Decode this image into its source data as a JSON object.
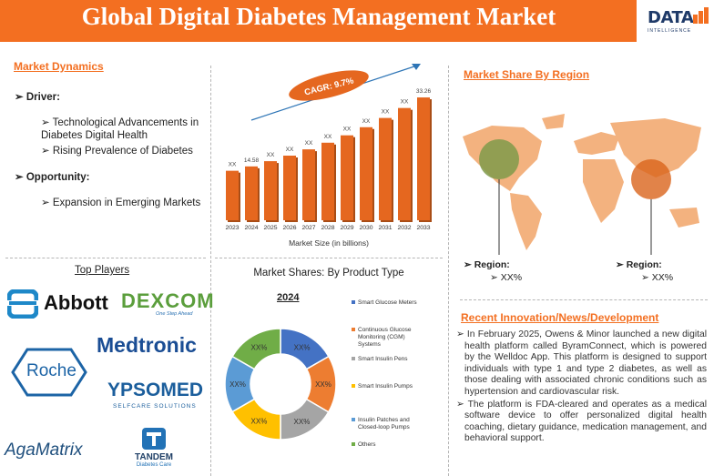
{
  "header": {
    "title": "Global Digital Diabetes Management Market",
    "logo_text": "DATA",
    "logo_sub": "INTELLIGENCE"
  },
  "dynamics": {
    "title": "Market Dynamics",
    "driver_label": "Driver:",
    "drivers": [
      "Technological Advancements in Diabetes Digital Health",
      "Rising Prevalence of Diabetes"
    ],
    "opportunity_label": "Opportunity:",
    "opportunities": [
      "Expansion in Emerging Markets"
    ]
  },
  "chart_data": [
    {
      "type": "bar",
      "categories": [
        "2023",
        "2024",
        "2025",
        "2026",
        "2027",
        "2028",
        "2029",
        "2030",
        "2031",
        "2032",
        "2033"
      ],
      "values": [
        13.4,
        14.58,
        16.0,
        17.5,
        19.2,
        21.0,
        23.0,
        25.2,
        27.7,
        30.4,
        33.26
      ],
      "data_labels": [
        "XX",
        "14.58",
        "XX",
        "XX",
        "XX",
        "XX",
        "XX",
        "XX",
        "XX",
        "XX",
        "33.26"
      ],
      "xlabel": "Market Size (in billions)",
      "annotation": "CAGR: 9.7%",
      "bar_color": "#e5671f"
    },
    {
      "type": "pie",
      "title": "Market Shares: By Product Type",
      "subtitle": "2024",
      "categories": [
        "Smart Glucose Meters",
        "Continuous Glucose Monitoring (CGM) Systems",
        "Smart Insulin Pens",
        "Smart Insulin Pumps",
        "Insulin Patches and Closed-loop Pumps",
        "Others"
      ],
      "values": [
        16.7,
        16.7,
        16.6,
        16.7,
        16.6,
        16.7
      ],
      "data_labels": [
        "XX%",
        "XX%",
        "XX%",
        "XX%",
        "XX%",
        "XX%"
      ],
      "colors": [
        "#4472c4",
        "#ed7d31",
        "#a5a5a5",
        "#ffc000",
        "#5b9bd5",
        "#70ad47"
      ],
      "legend": "right"
    }
  ],
  "region": {
    "title": "Market Share By Region",
    "left_label": "Region:",
    "left_value": "XX%",
    "right_label": "Region:",
    "right_value": "XX%"
  },
  "players": {
    "title": "Top Players",
    "names": [
      "Abbott",
      "DEXCOM",
      "One Step Ahead",
      "Medtronic",
      "Roche",
      "YPSOMED",
      "SELFCARE SOLUTIONS",
      "AgaMatrix",
      "TANDEM",
      "Diabetes Care"
    ]
  },
  "news": {
    "title": "Recent Innovation/News/Development",
    "items": [
      "In February 2025, Owens & Minor launched a new digital health platform called ByramConnect, which is powered by the Welldoc App. This platform is designed to support individuals with type 1 and type 2 diabetes, as well as those dealing with associated chronic conditions such as hypertension and cardiovascular risk.",
      "The platform is FDA-cleared and operates as a medical software device to offer personalized digital health coaching, dietary guidance, medication management, and behavioral support."
    ]
  }
}
